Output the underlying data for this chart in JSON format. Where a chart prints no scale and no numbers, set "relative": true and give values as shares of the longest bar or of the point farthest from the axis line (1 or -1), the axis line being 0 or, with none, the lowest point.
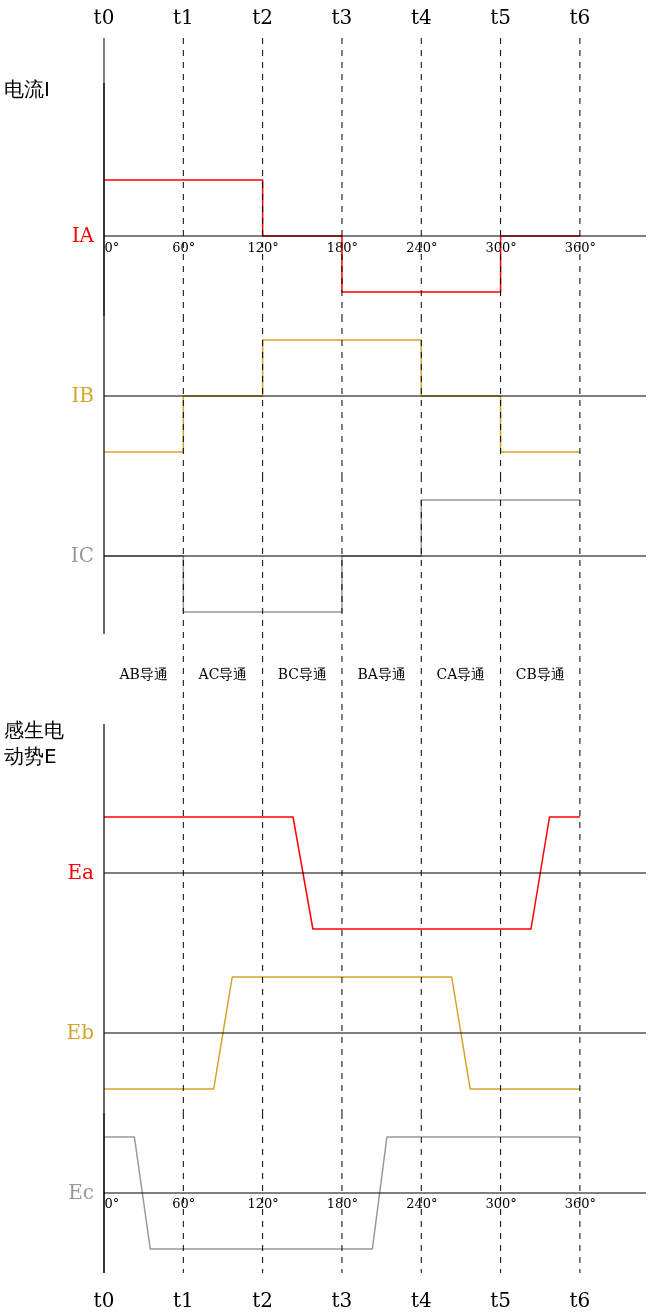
{
  "chart_data": [
    {
      "type": "line",
      "relative": true,
      "ylabel": "电流I",
      "xlim": [
        0,
        410
      ],
      "xticks": [
        {
          "value": 0,
          "label": "0°"
        },
        {
          "value": 60,
          "label": "60°"
        },
        {
          "value": 120,
          "label": "120°"
        },
        {
          "value": 180,
          "label": "180°"
        },
        {
          "value": 240,
          "label": "240°"
        },
        {
          "value": 300,
          "label": "300°"
        },
        {
          "value": 360,
          "label": "360°"
        }
      ],
      "series": [
        {
          "name": "IA",
          "color": "#ff0000",
          "x": [
            0,
            120,
            120,
            180,
            180,
            300,
            300,
            360
          ],
          "values": [
            1,
            1,
            0,
            0,
            -1,
            -1,
            0,
            0
          ]
        }
      ],
      "ref_lines": [
        {
          "axis": "x",
          "value": 0,
          "label": "t0",
          "line_style": "solid"
        },
        {
          "axis": "x",
          "value": 60,
          "label": "t1",
          "line_style": "dashed"
        },
        {
          "axis": "x",
          "value": 120,
          "label": "t2",
          "line_style": "dashed"
        },
        {
          "axis": "x",
          "value": 180,
          "label": "t3",
          "line_style": "dashed"
        },
        {
          "axis": "x",
          "value": 240,
          "label": "t4",
          "line_style": "dashed"
        },
        {
          "axis": "x",
          "value": 300,
          "label": "t5",
          "line_style": "dashed"
        },
        {
          "axis": "x",
          "value": 360,
          "label": "t6",
          "line_style": "dashed"
        }
      ]
    },
    {
      "type": "line",
      "relative": true,
      "xlim": [
        0,
        410
      ],
      "series": [
        {
          "name": "IB",
          "color": "#d4a52a",
          "x": [
            0,
            60,
            60,
            120,
            120,
            240,
            240,
            300,
            300,
            360
          ],
          "values": [
            -1,
            -1,
            0,
            0,
            1,
            1,
            0,
            0,
            -1,
            -1
          ]
        }
      ],
      "ref_lines": [
        {
          "axis": "x",
          "value": 60,
          "line_style": "dashed"
        },
        {
          "axis": "x",
          "value": 120,
          "line_style": "dashed"
        },
        {
          "axis": "x",
          "value": 180,
          "line_style": "dashed"
        },
        {
          "axis": "x",
          "value": 240,
          "line_style": "dashed"
        },
        {
          "axis": "x",
          "value": 300,
          "line_style": "dashed"
        },
        {
          "axis": "x",
          "value": 360,
          "line_style": "dashed"
        }
      ]
    },
    {
      "type": "line",
      "relative": true,
      "xlim": [
        0,
        410
      ],
      "series": [
        {
          "name": "IC",
          "color": "#999999",
          "x": [
            0,
            60,
            60,
            180,
            180,
            240,
            240,
            360
          ],
          "values": [
            0,
            0,
            -1,
            -1,
            0,
            0,
            1,
            1
          ]
        }
      ],
      "ref_lines": [
        {
          "axis": "x",
          "value": 60,
          "line_style": "dashed"
        },
        {
          "axis": "x",
          "value": 120,
          "line_style": "dashed"
        },
        {
          "axis": "x",
          "value": 180,
          "line_style": "dashed"
        },
        {
          "axis": "x",
          "value": 240,
          "line_style": "dashed"
        },
        {
          "axis": "x",
          "value": 300,
          "line_style": "dashed"
        },
        {
          "axis": "x",
          "value": 360,
          "line_style": "dashed"
        }
      ],
      "annotations": [
        "AB导通",
        "AC导通",
        "BC导通",
        "BA导通",
        "CA导通",
        "CB导通"
      ]
    },
    {
      "type": "line",
      "relative": true,
      "ylabel": "感生电动势E",
      "xlim": [
        0,
        410
      ],
      "series": [
        {
          "name": "Ea",
          "color": "#ff0000",
          "x": [
            0,
            143,
            158,
            323,
            337,
            360
          ],
          "values": [
            1,
            1,
            -1,
            -1,
            1,
            1
          ]
        }
      ],
      "ref_lines": [
        {
          "axis": "x",
          "value": 60,
          "line_style": "dashed"
        },
        {
          "axis": "x",
          "value": 120,
          "line_style": "dashed"
        },
        {
          "axis": "x",
          "value": 180,
          "line_style": "dashed"
        },
        {
          "axis": "x",
          "value": 240,
          "line_style": "dashed"
        },
        {
          "axis": "x",
          "value": 300,
          "line_style": "dashed"
        },
        {
          "axis": "x",
          "value": 360,
          "line_style": "dashed"
        }
      ]
    },
    {
      "type": "line",
      "relative": true,
      "xlim": [
        0,
        410
      ],
      "series": [
        {
          "name": "Eb",
          "color": "#d4a52a",
          "x": [
            0,
            83,
            97,
            263,
            277,
            360
          ],
          "values": [
            -1,
            -1,
            1,
            1,
            -1,
            -1
          ]
        }
      ],
      "ref_lines": [
        {
          "axis": "x",
          "value": 60,
          "line_style": "dashed"
        },
        {
          "axis": "x",
          "value": 120,
          "line_style": "dashed"
        },
        {
          "axis": "x",
          "value": 180,
          "line_style": "dashed"
        },
        {
          "axis": "x",
          "value": 240,
          "line_style": "dashed"
        },
        {
          "axis": "x",
          "value": 300,
          "line_style": "dashed"
        },
        {
          "axis": "x",
          "value": 360,
          "line_style": "dashed"
        }
      ]
    },
    {
      "type": "line",
      "relative": true,
      "xlim": [
        0,
        410
      ],
      "xticks": [
        {
          "value": 0,
          "label": "0°"
        },
        {
          "value": 60,
          "label": "60°"
        },
        {
          "value": 120,
          "label": "120°"
        },
        {
          "value": 180,
          "label": "180°"
        },
        {
          "value": 240,
          "label": "240°"
        },
        {
          "value": 300,
          "label": "300°"
        },
        {
          "value": 360,
          "label": "360°"
        }
      ],
      "series": [
        {
          "name": "Ec",
          "color": "#999999",
          "x": [
            0,
            23,
            35,
            203,
            214,
            360
          ],
          "values": [
            1,
            1,
            -1,
            -1,
            1,
            1
          ]
        }
      ],
      "ref_lines": [
        {
          "axis": "x",
          "value": 0,
          "label": "t0",
          "line_style": "solid"
        },
        {
          "axis": "x",
          "value": 60,
          "label": "t1",
          "line_style": "dashed"
        },
        {
          "axis": "x",
          "value": 120,
          "label": "t2",
          "line_style": "dashed"
        },
        {
          "axis": "x",
          "value": 180,
          "label": "t3",
          "line_style": "dashed"
        },
        {
          "axis": "x",
          "value": 240,
          "label": "t4",
          "line_style": "dashed"
        },
        {
          "axis": "x",
          "value": 300,
          "label": "t5",
          "line_style": "dashed"
        },
        {
          "axis": "x",
          "value": 360,
          "label": "t6",
          "line_style": "dashed"
        }
      ]
    }
  ]
}
